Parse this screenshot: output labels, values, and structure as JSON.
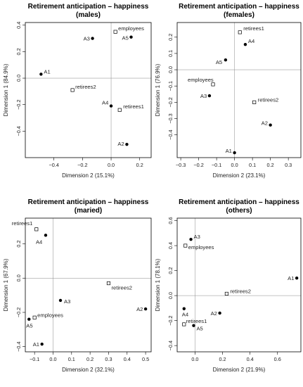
{
  "chart_data": [
    {
      "type": "scatter",
      "title": "Retirement anticipation – happiness",
      "subtitle": "(males)",
      "xlabel": "Dimension 2 (15.1%)",
      "ylabel": "Dimension 1 (84.9%)",
      "xlim": [
        -0.6,
        0.28
      ],
      "ylim": [
        -0.6,
        0.42
      ],
      "xticks": [
        -0.4,
        -0.2,
        0.0,
        0.2
      ],
      "yticks": [
        -0.4,
        -0.2,
        0.0,
        0.2,
        0.4
      ],
      "points": [
        {
          "label": "employees",
          "x": 0.03,
          "y": 0.35,
          "marker": "open-square"
        },
        {
          "label": "A3",
          "x": -0.13,
          "y": 0.3,
          "marker": "filled-circle"
        },
        {
          "label": "A5",
          "x": 0.14,
          "y": 0.31,
          "marker": "filled-circle"
        },
        {
          "label": "A1",
          "x": -0.49,
          "y": 0.03,
          "marker": "filled-circle"
        },
        {
          "label": "retirees2",
          "x": -0.27,
          "y": -0.09,
          "marker": "open-square"
        },
        {
          "label": "A4",
          "x": 0.0,
          "y": -0.21,
          "marker": "filled-circle"
        },
        {
          "label": "retirees1",
          "x": 0.06,
          "y": -0.24,
          "marker": "open-square"
        },
        {
          "label": "A2",
          "x": 0.11,
          "y": -0.5,
          "marker": "filled-circle"
        }
      ]
    },
    {
      "type": "scatter",
      "title": "Retirement anticipation – happiness",
      "subtitle": "(females)",
      "xlabel": "Dimension 2 (23.1%)",
      "ylabel": "Dimension 1 (76.9%)",
      "xlim": [
        -0.32,
        0.37
      ],
      "ylim": [
        -0.54,
        0.29
      ],
      "xticks": [
        -0.3,
        -0.2,
        -0.1,
        0.0,
        0.1,
        0.2,
        0.3
      ],
      "yticks": [
        -0.4,
        -0.3,
        -0.2,
        -0.1,
        0.0,
        0.1,
        0.2
      ],
      "points": [
        {
          "label": "retirees1",
          "x": 0.03,
          "y": 0.23,
          "marker": "open-square"
        },
        {
          "label": "A4",
          "x": 0.06,
          "y": 0.155,
          "marker": "filled-circle"
        },
        {
          "label": "A5",
          "x": -0.05,
          "y": 0.06,
          "marker": "filled-circle"
        },
        {
          "label": "employees",
          "x": -0.12,
          "y": -0.09,
          "marker": "open-square"
        },
        {
          "label": "A3",
          "x": -0.14,
          "y": -0.16,
          "marker": "filled-circle"
        },
        {
          "label": "retirees2",
          "x": 0.11,
          "y": -0.2,
          "marker": "open-square"
        },
        {
          "label": "A2",
          "x": 0.2,
          "y": -0.34,
          "marker": "filled-circle"
        },
        {
          "label": "A1",
          "x": 0.0,
          "y": -0.51,
          "marker": "filled-circle"
        }
      ]
    },
    {
      "type": "scatter",
      "title": "Retirement anticipation – happiness",
      "subtitle": "(maried)",
      "xlabel": "Dimension 2 (32.1%)",
      "ylabel": "Dimension 1 (67.9%)",
      "xlim": [
        -0.15,
        0.53
      ],
      "ylim": [
        -0.43,
        0.35
      ],
      "xticks": [
        -0.1,
        0.0,
        0.1,
        0.2,
        0.3,
        0.4,
        0.5
      ],
      "yticks": [
        -0.4,
        -0.2,
        0.0,
        0.2
      ],
      "points": [
        {
          "label": "retirees1",
          "x": -0.09,
          "y": 0.285,
          "marker": "open-square"
        },
        {
          "label": "A4",
          "x": -0.04,
          "y": 0.25,
          "marker": "filled-circle"
        },
        {
          "label": "retirees2",
          "x": 0.3,
          "y": -0.03,
          "marker": "open-square"
        },
        {
          "label": "A2",
          "x": 0.5,
          "y": -0.18,
          "marker": "filled-circle"
        },
        {
          "label": "A3",
          "x": 0.04,
          "y": -0.13,
          "marker": "filled-circle"
        },
        {
          "label": "employees",
          "x": -0.1,
          "y": -0.23,
          "marker": "open-square"
        },
        {
          "label": "A5",
          "x": -0.13,
          "y": -0.24,
          "marker": "filled-circle"
        },
        {
          "label": "A1",
          "x": -0.06,
          "y": -0.385,
          "marker": "filled-circle"
        }
      ]
    },
    {
      "type": "scatter",
      "title": "Retirement anticipation – happiness",
      "subtitle": "(others)",
      "xlabel": "Dimension 2 (21.9%)",
      "ylabel": "Dimension 1 (78.1%)",
      "xlim": [
        -0.13,
        0.77
      ],
      "ylim": [
        -0.45,
        0.62
      ],
      "xticks": [
        0.0,
        0.2,
        0.4,
        0.6
      ],
      "yticks": [
        -0.4,
        -0.2,
        0.0,
        0.2,
        0.4,
        0.6
      ],
      "points": [
        {
          "label": "A3",
          "x": -0.03,
          "y": 0.45,
          "marker": "filled-circle"
        },
        {
          "label": "employees",
          "x": -0.07,
          "y": 0.4,
          "marker": "open-square"
        },
        {
          "label": "A1",
          "x": 0.74,
          "y": 0.14,
          "marker": "filled-circle"
        },
        {
          "label": "retirees2",
          "x": 0.23,
          "y": 0.015,
          "marker": "open-square"
        },
        {
          "label": "A4",
          "x": -0.08,
          "y": -0.105,
          "marker": "filled-circle"
        },
        {
          "label": "A2",
          "x": 0.18,
          "y": -0.14,
          "marker": "filled-circle"
        },
        {
          "label": "retirees1",
          "x": -0.08,
          "y": -0.23,
          "marker": "open-square"
        },
        {
          "label": "A5",
          "x": -0.01,
          "y": -0.24,
          "marker": "filled-circle"
        }
      ]
    }
  ]
}
